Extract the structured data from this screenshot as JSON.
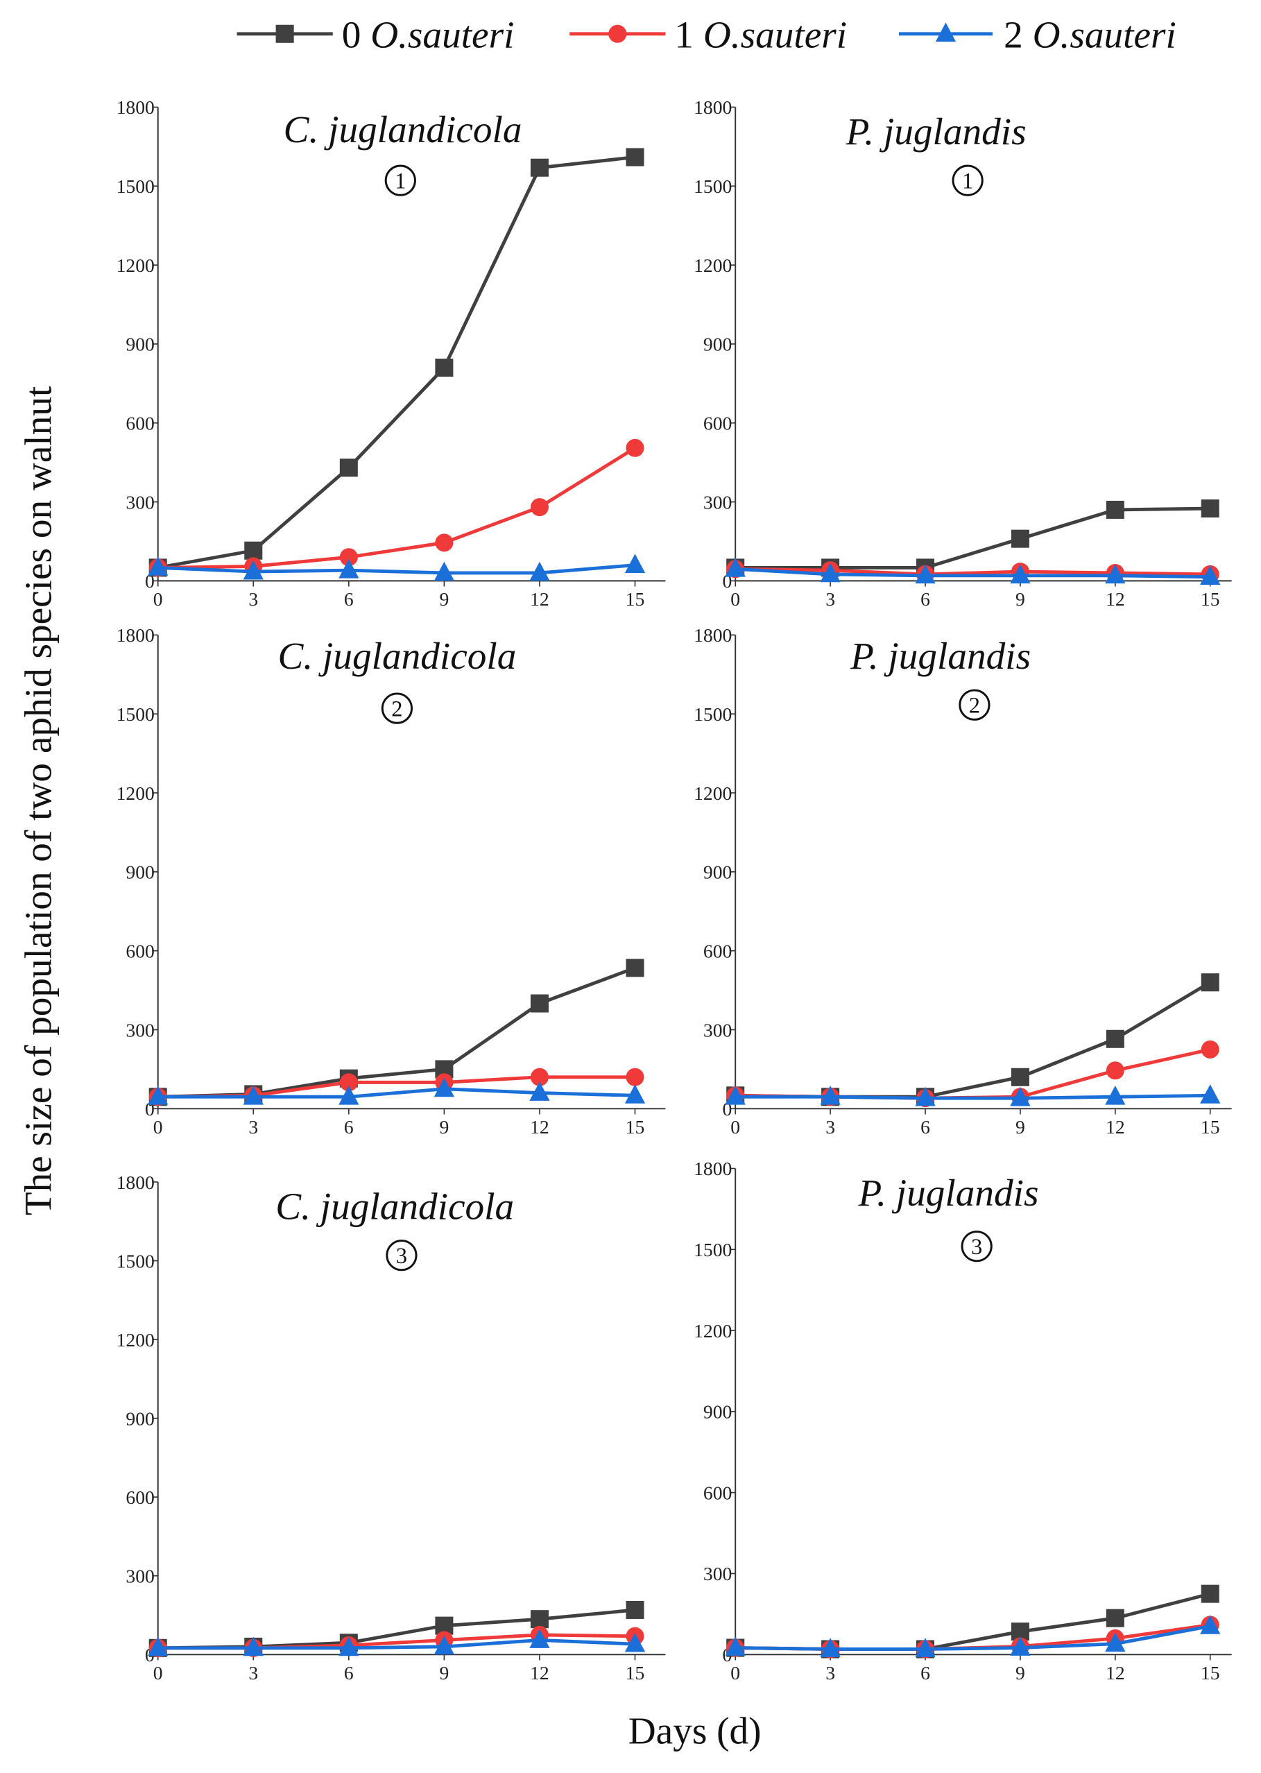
{
  "chart_data": {
    "type": "line",
    "ylabel": "The size of population of two aphid species on walnut",
    "xlabel": "Days (d)",
    "x": [
      0,
      3,
      6,
      9,
      12,
      15
    ],
    "xticks": [
      "0",
      "3",
      "6",
      "9",
      "12",
      "15"
    ],
    "yticks": [
      "0",
      "300",
      "600",
      "900",
      "1200",
      "1500",
      "1800"
    ],
    "ylim": [
      0,
      1800
    ],
    "xlim": [
      0,
      15
    ],
    "legend": {
      "placement": "top",
      "entries": [
        {
          "count": "0",
          "name": "O.sauteri",
          "color": "#404040",
          "marker": "square"
        },
        {
          "count": "1",
          "name": "O.sauteri",
          "color": "#f03a3a",
          "marker": "circle"
        },
        {
          "count": "2",
          "name": "O.sauteri",
          "color": "#1a6fd8",
          "marker": "triangle"
        }
      ]
    },
    "panels": [
      {
        "title": "C. juglandicola",
        "number": "①",
        "series": [
          {
            "name": "0 O.sauteri",
            "values": [
              50,
              115,
              430,
              810,
              1570,
              1610
            ]
          },
          {
            "name": "1 O.sauteri",
            "values": [
              50,
              55,
              90,
              145,
              280,
              505
            ]
          },
          {
            "name": "2 O.sauteri",
            "values": [
              50,
              35,
              40,
              30,
              30,
              60
            ]
          }
        ]
      },
      {
        "title": "P. juglandis",
        "number": "①",
        "series": [
          {
            "name": "0 O.sauteri",
            "values": [
              50,
              50,
              50,
              160,
              270,
              275
            ]
          },
          {
            "name": "1 O.sauteri",
            "values": [
              45,
              40,
              25,
              35,
              30,
              25
            ]
          },
          {
            "name": "2 O.sauteri",
            "values": [
              45,
              25,
              20,
              20,
              20,
              15
            ]
          }
        ]
      },
      {
        "title": "C. juglandicola",
        "number": "②",
        "series": [
          {
            "name": "0 O.sauteri",
            "values": [
              45,
              55,
              115,
              150,
              400,
              535
            ]
          },
          {
            "name": "1 O.sauteri",
            "values": [
              45,
              50,
              100,
              100,
              120,
              120
            ]
          },
          {
            "name": "2 O.sauteri",
            "values": [
              45,
              45,
              45,
              75,
              60,
              50
            ]
          }
        ]
      },
      {
        "title": "P. juglandis",
        "number": "②",
        "series": [
          {
            "name": "0 O.sauteri",
            "values": [
              50,
              45,
              45,
              120,
              265,
              480
            ]
          },
          {
            "name": "1 O.sauteri",
            "values": [
              50,
              45,
              40,
              45,
              145,
              225
            ]
          },
          {
            "name": "2 O.sauteri",
            "values": [
              45,
              45,
              40,
              40,
              45,
              50
            ]
          }
        ]
      },
      {
        "title": "C. juglandicola",
        "number": "③",
        "series": [
          {
            "name": "0 O.sauteri",
            "values": [
              25,
              30,
              45,
              110,
              135,
              170
            ]
          },
          {
            "name": "1 O.sauteri",
            "values": [
              25,
              25,
              35,
              55,
              75,
              70
            ]
          },
          {
            "name": "2 O.sauteri",
            "values": [
              25,
              25,
              25,
              30,
              55,
              40
            ]
          }
        ]
      },
      {
        "title": "P. juglandis",
        "number": "③",
        "series": [
          {
            "name": "0 O.sauteri",
            "values": [
              25,
              20,
              20,
              85,
              135,
              225
            ]
          },
          {
            "name": "1 O.sauteri",
            "values": [
              25,
              20,
              20,
              30,
              60,
              110
            ]
          },
          {
            "name": "2 O.sauteri",
            "values": [
              25,
              20,
              20,
              25,
              40,
              105
            ]
          }
        ]
      }
    ]
  }
}
